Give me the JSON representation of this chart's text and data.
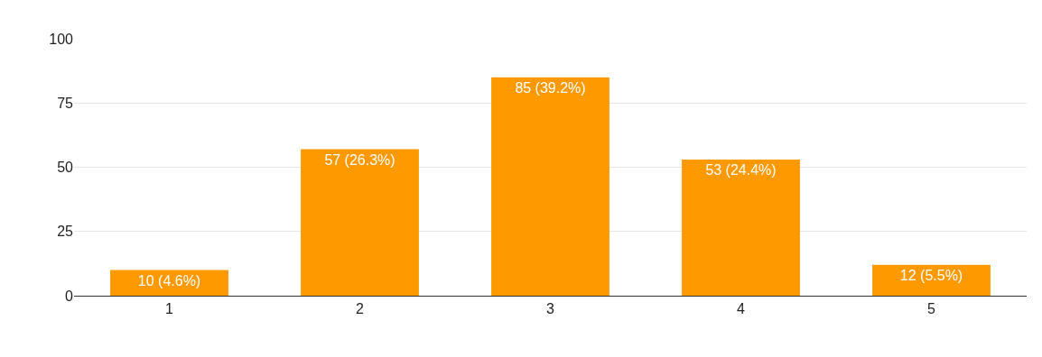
{
  "chart_data": {
    "type": "bar",
    "categories": [
      "1",
      "2",
      "3",
      "4",
      "5"
    ],
    "values": [
      10,
      57,
      85,
      53,
      12
    ],
    "value_labels": [
      "10 (4.6%)",
      "57 (26.3%)",
      "85 (39.2%)",
      "53 (24.4%)",
      "12 (5.5%)"
    ],
    "color": "#ff9900",
    "ylim": [
      0,
      100
    ],
    "yticks": [
      0,
      25,
      50,
      75,
      100
    ],
    "grid": "y",
    "legend": false
  }
}
